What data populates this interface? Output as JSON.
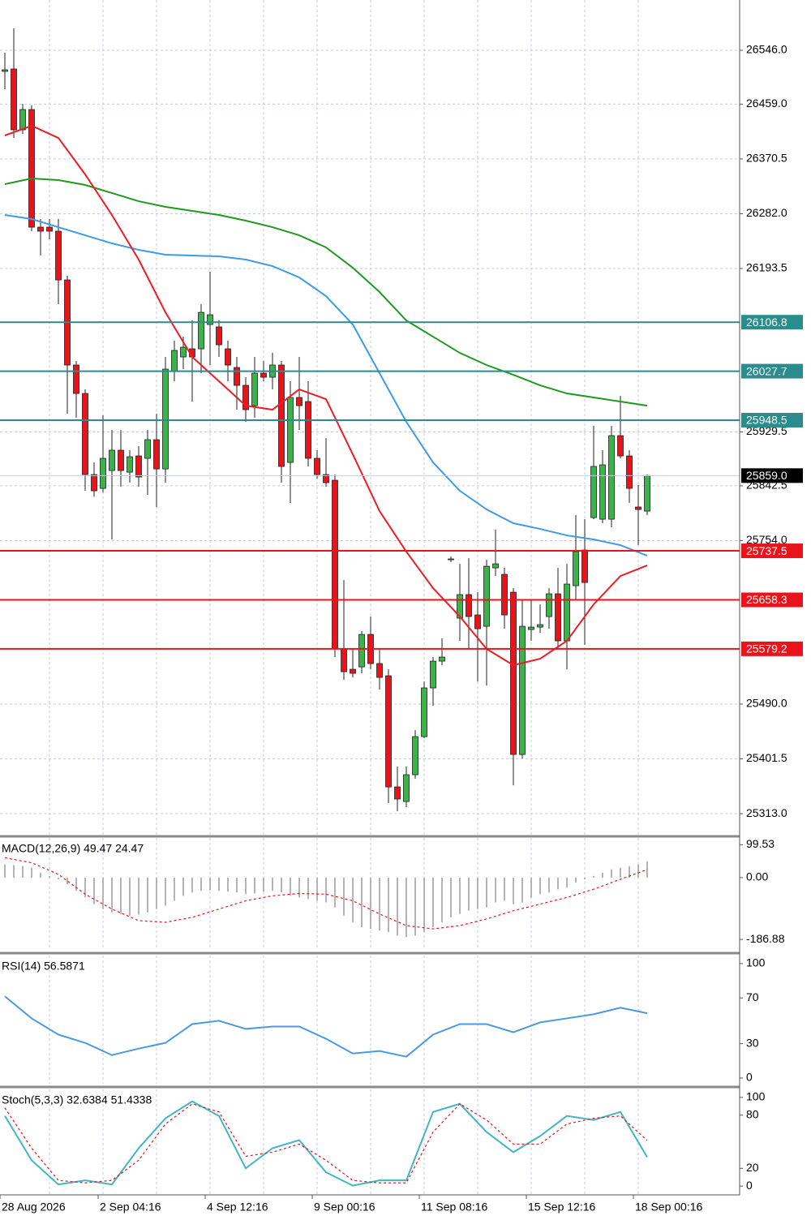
{
  "chart_data": [
    {
      "type": "candlestick",
      "categories": [
        "28 Aug 2026",
        null,
        null,
        null,
        null,
        null,
        null,
        null,
        null,
        null,
        null,
        "2 Sep 04:16",
        null,
        null,
        null,
        null,
        null,
        null,
        null,
        null,
        null,
        null,
        null,
        "4 Sep 12:16",
        null,
        null,
        null,
        null,
        null,
        null,
        null,
        null,
        null,
        null,
        null,
        "9 Sep 00:16",
        null,
        null,
        null,
        null,
        null,
        null,
        null,
        null,
        null,
        null,
        null,
        "11 Sep 08:16",
        null,
        null,
        null,
        null,
        null,
        null,
        null,
        null,
        null,
        null,
        null,
        "15 Sep 12:16",
        null,
        null,
        null,
        null,
        null,
        null,
        null,
        null,
        null,
        null,
        null,
        "18 Sep 00:16",
        null
      ],
      "open": [
        26511.9,
        26515.8,
        26417.6,
        26450.3,
        26260.3,
        26260.3,
        26253.8,
        26175.1,
        26037.6,
        25991.7,
        25860.7,
        25838.4,
        25867.2,
        25900.0,
        25864.6,
        25890.8,
        25886.9,
        25917.0,
        25869.8,
        26027.1,
        26050.7,
        26063.8,
        26063.8,
        26103.1,
        26099.2,
        26063.8,
        26033.6,
        26004.8,
        25972.0,
        26024.5,
        26017.9,
        26037.6,
        25880.3,
        25985.2,
        25978.6,
        25886.9,
        25860.7,
        25851.5,
        25579.0,
        25546.2,
        25550.1,
        25602.5,
        25555.4,
        25535.7,
        25356.2,
        25332.6,
        25375.9,
        25437.4,
        25516.1,
        25559.3,
        25723.1,
        25628.8,
        25666.8,
        25634.0,
        25615.6,
        25710.0,
        25699.5,
        25670.7,
        25408.6,
        25610.4,
        25614.3,
        25631.4,
        25668.1,
        25592.1,
        25681.2,
        25738.8,
        25791.2,
        25788.6,
        25788.6,
        25923.6,
        25890.8,
        25808.3,
        25801.7
      ],
      "high": [
        26542.0,
        26581.3,
        26459.5,
        26456.9,
        26273.4,
        26273.4,
        26273.4,
        26181.7,
        26044.1,
        25998.3,
        25880.3,
        25956.3,
        25932.7,
        25932.7,
        25900.0,
        25906.5,
        25932.7,
        25958.9,
        26050.7,
        26076.9,
        26083.4,
        26109.6,
        26135.8,
        26188.3,
        26109.6,
        26076.9,
        26050.7,
        26017.9,
        26050.7,
        26044.1,
        26057.2,
        26044.1,
        26011.4,
        26050.7,
        26011.4,
        25900.0,
        25919.6,
        25860.7,
        25690.3,
        25579.0,
        25607.8,
        25631.4,
        25579.0,
        25546.2,
        25389.0,
        25389.0,
        25447.9,
        25526.5,
        25565.9,
        25596.0,
        25728.3,
        25716.5,
        25725.7,
        25670.7,
        25723.1,
        25771.6,
        25710.0,
        25677.2,
        25657.6,
        25657.6,
        25651.0,
        25677.2,
        25710.0,
        25716.5,
        25795.2,
        25788.6,
        25939.3,
        25900.0,
        25939.3,
        25987.8,
        25900.0,
        25843.6,
        25860.7
      ],
      "low": [
        26483.1,
        26404.4,
        26411.0,
        26253.8,
        26214.5,
        26240.7,
        26135.8,
        25958.9,
        25952.4,
        25834.5,
        25825.3,
        25831.8,
        25755.9,
        25841.0,
        25847.6,
        25841.0,
        25827.9,
        25808.3,
        25847.6,
        26011.4,
        26031.0,
        25978.6,
        26024.5,
        26037.6,
        26050.7,
        26011.4,
        25965.5,
        25945.8,
        25952.4,
        26011.4,
        25998.3,
        25847.6,
        25814.8,
        25932.7,
        25873.8,
        25854.1,
        25841.0,
        25565.9,
        25529.2,
        25533.1,
        25539.7,
        25546.2,
        25513.4,
        25330.0,
        25316.9,
        25323.5,
        25369.3,
        25434.8,
        25487.2,
        25552.8,
        25719.2,
        25592.1,
        25579.0,
        25526.5,
        25520.0,
        25696.9,
        25611.7,
        25358.8,
        25402.1,
        25592.1,
        25605.2,
        25611.7,
        25579.0,
        25546.2,
        25657.6,
        25585.5,
        25788.6,
        25782.1,
        25775.5,
        25886.9,
        25814.8,
        25746.7,
        25795.2
      ],
      "close": [
        26514.5,
        26417.6,
        26450.3,
        26260.3,
        26253.8,
        26253.8,
        26175.1,
        26037.6,
        25991.7,
        25860.7,
        25834.5,
        25886.9,
        25900.0,
        25867.2,
        25889.5,
        25856.7,
        25917.0,
        25869.8,
        26031.0,
        26061.2,
        26066.4,
        26050.7,
        26122.7,
        26118.8,
        26070.3,
        26037.6,
        26004.8,
        25965.5,
        26024.5,
        26017.9,
        26037.6,
        25873.8,
        25985.2,
        25972.0,
        25886.9,
        25860.7,
        25847.6,
        25579.0,
        25542.3,
        25539.7,
        25602.5,
        25555.4,
        25533.1,
        25356.2,
        25336.6,
        25375.9,
        25437.4,
        25516.1,
        25559.3,
        25565.9,
        25724.4,
        25666.8,
        25631.4,
        25611.7,
        25712.6,
        25716.5,
        25634.0,
        25408.6,
        25615.6,
        25614.3,
        25618.3,
        25668.1,
        25592.1,
        25683.8,
        25736.2,
        25686.4,
        25873.8,
        25876.4,
        25923.6,
        25890.8,
        25838.4,
        25804.3,
        25859.0
      ],
      "up_color": "#3cb34a",
      "down_color": "#e8141c",
      "series": [
        {
          "color": "#1f9a1f",
          "x": [
            0,
            3,
            6,
            9,
            12,
            15,
            18,
            21,
            24,
            27,
            30,
            33,
            36,
            39,
            42,
            45,
            48,
            51,
            54,
            57,
            60,
            63,
            66,
            69,
            72
          ],
          "values": [
            26329.8,
            26338.9,
            26336.3,
            26328.5,
            26315.4,
            26302.2,
            26293.1,
            26286.5,
            26280.0,
            26270.8,
            26260.3,
            26247.2,
            26227.6,
            26194.8,
            26155.5,
            26109.6,
            26083.4,
            26057.2,
            26037.6,
            26021.8,
            26004.8,
            25991.7,
            25985.2,
            25978.6,
            25972.0
          ]
        },
        {
          "color": "#3d9be9",
          "x": [
            0,
            3,
            6,
            9,
            12,
            15,
            18,
            21,
            24,
            27,
            30,
            33,
            36,
            39,
            42,
            45,
            48,
            51,
            54,
            57,
            60,
            63,
            66,
            69,
            72
          ],
          "values": [
            26280.0,
            26273.4,
            26260.3,
            26247.2,
            26234.1,
            26223.6,
            26215.8,
            26214.5,
            26213.1,
            26207.9,
            26197.4,
            26179.1,
            26148.9,
            26103.1,
            26024.5,
            25945.8,
            25880.3,
            25834.5,
            25804.3,
            25782.1,
            25772.9,
            25762.4,
            25755.9,
            25746.7,
            25729.6
          ]
        },
        {
          "color": "#ee1c25",
          "x": [
            0,
            3,
            6,
            9,
            12,
            15,
            18,
            21,
            24,
            27,
            30,
            33,
            36,
            39,
            42,
            45,
            48,
            51,
            54,
            57,
            60,
            63,
            66,
            69,
            72
          ],
          "values": [
            26408.4,
            26424.1,
            26404.4,
            26345.5,
            26280.0,
            26207.9,
            26122.7,
            26050.7,
            26011.4,
            25972.0,
            25965.5,
            25998.3,
            25982.5,
            25893.4,
            25801.7,
            25736.2,
            25677.2,
            25631.4,
            25579.0,
            25552.8,
            25563.2,
            25592.1,
            25651.0,
            25696.9,
            25713.9
          ]
        }
      ],
      "levels": [
        {
          "value": 26106.8,
          "color": "#2a8c8c"
        },
        {
          "value": 26027.7,
          "color": "#2a8c8c"
        },
        {
          "value": 25948.5,
          "color": "#2a8c8c"
        },
        {
          "value": 25859,
          "label": "25859.0",
          "color": "#c4cde0",
          "label_color": "#000000"
        },
        {
          "value": 25737.5,
          "color": "#e8141c"
        },
        {
          "value": 25658.3,
          "color": "#e8141c"
        },
        {
          "value": 25579.2,
          "color": "#e8141c"
        }
      ],
      "ylim": [
        25277.7,
        26627.2
      ],
      "yticks": [
        {
          "value": 26546,
          "label": "26546.0"
        },
        {
          "value": 26459,
          "label": "26459.0"
        },
        {
          "value": 26370.5,
          "label": "26370.5"
        },
        {
          "value": 26282,
          "label": "26282.0"
        },
        {
          "value": 26193.5,
          "label": "26193.5"
        },
        {
          "value": 25929.5,
          "label": "25929.5"
        },
        {
          "value": 25842.5,
          "label": "25842.5"
        },
        {
          "value": 25754,
          "label": "25754.0"
        },
        {
          "value": 25490,
          "label": "25490.0"
        },
        {
          "value": 25401.5,
          "label": "25401.5"
        },
        {
          "value": 25313,
          "label": "25313.0"
        }
      ],
      "grid": true
    },
    {
      "type": "bar",
      "title": "MACD(12,26,9) 49.47 24.47",
      "color": "#b4b4b4",
      "values": [
        40,
        38,
        35,
        30,
        15,
        5,
        -5,
        -20,
        -40,
        -60,
        -80,
        -95,
        -105,
        -110,
        -115,
        -112,
        -105,
        -95,
        -85,
        -70,
        -55,
        -45,
        -40,
        -38,
        -40,
        -42,
        -45,
        -50,
        -48,
        -42,
        -40,
        -45,
        -55,
        -60,
        -65,
        -70,
        -75,
        -90,
        -115,
        -135,
        -150,
        -155,
        -160,
        -165,
        -175,
        -180,
        -175,
        -165,
        -150,
        -135,
        -120,
        -110,
        -100,
        -95,
        -90,
        -75,
        -70,
        -80,
        -75,
        -60,
        -50,
        -45,
        -35,
        -30,
        -15,
        -5,
        5,
        15,
        25,
        30,
        35,
        40,
        49.47
      ],
      "series": [
        {
          "color": "#e8141c",
          "dash": true,
          "x": [
            0,
            3,
            6,
            9,
            12,
            15,
            18,
            21,
            24,
            27,
            30,
            33,
            36,
            39,
            42,
            45,
            48,
            51,
            54,
            57,
            60,
            63,
            66,
            69,
            72
          ],
          "values": [
            60,
            45,
            10,
            -50,
            -95,
            -130,
            -135,
            -120,
            -95,
            -70,
            -55,
            -48,
            -50,
            -70,
            -110,
            -145,
            -155,
            -145,
            -125,
            -100,
            -80,
            -60,
            -35,
            -5,
            24.47
          ]
        }
      ],
      "ylim": [
        -216,
        120
      ],
      "yticks": [
        99.53,
        {
          "value": 0,
          "label": "0.00"
        },
        -186.88
      ],
      "grid": false
    },
    {
      "type": "line",
      "title": "RSI(14) 56.5871",
      "series": [
        {
          "color": "#4a9ae0",
          "x": [
            0,
            3,
            6,
            9,
            12,
            15,
            18,
            21,
            24,
            27,
            30,
            33,
            36,
            39,
            42,
            45,
            48,
            51,
            54,
            57,
            60,
            63,
            66,
            69,
            72
          ],
          "values": [
            71.4,
            52.1,
            37.9,
            30.7,
            20.0,
            25.7,
            30.7,
            47.1,
            50.0,
            42.9,
            45.0,
            45.0,
            34.3,
            21.4,
            23.6,
            18.6,
            37.9,
            47.1,
            47.1,
            40.0,
            48.6,
            52.1,
            55.7,
            61.4,
            56.5871
          ]
        }
      ],
      "ylim": [
        -5,
        107
      ],
      "yticks": [
        100,
        70,
        30,
        0
      ],
      "grid": false
    },
    {
      "type": "line",
      "title": "Stoch(5,3,3) 32.6384 51.4338",
      "series": [
        {
          "color": "#3fb6c4",
          "x": [
            0,
            3,
            6,
            9,
            12,
            15,
            18,
            21,
            24,
            27,
            30,
            33,
            36,
            39,
            42,
            45,
            48,
            51,
            54,
            57,
            60,
            63,
            66,
            69,
            72
          ],
          "values": [
            79.1,
            29.1,
            1.8,
            6.4,
            1.8,
            42.7,
            76.4,
            95.5,
            79.1,
            20.0,
            42.7,
            51.8,
            15.5,
            0.5,
            6.4,
            6.4,
            83.6,
            92.7,
            60.9,
            38.2,
            56.4,
            79.1,
            74.5,
            83.6,
            32.6384
          ]
        },
        {
          "color": "#e8141c",
          "dash": true,
          "x": [
            0,
            3,
            6,
            9,
            12,
            15,
            18,
            21,
            24,
            27,
            30,
            33,
            36,
            39,
            42,
            45,
            48,
            51,
            54,
            57,
            60,
            63,
            66,
            69,
            72
          ],
          "values": [
            88.2,
            42.7,
            6.4,
            3.6,
            6.4,
            29.1,
            70.0,
            92.7,
            83.6,
            33.6,
            38.2,
            47.3,
            29.1,
            6.4,
            3.6,
            3.6,
            60.9,
            92.7,
            74.5,
            47.3,
            47.3,
            70.0,
            76.4,
            79.1,
            51.4338
          ]
        }
      ],
      "ylim": [
        -9,
        109
      ],
      "yticks": [
        100,
        80,
        20,
        0
      ],
      "grid": false
    }
  ]
}
